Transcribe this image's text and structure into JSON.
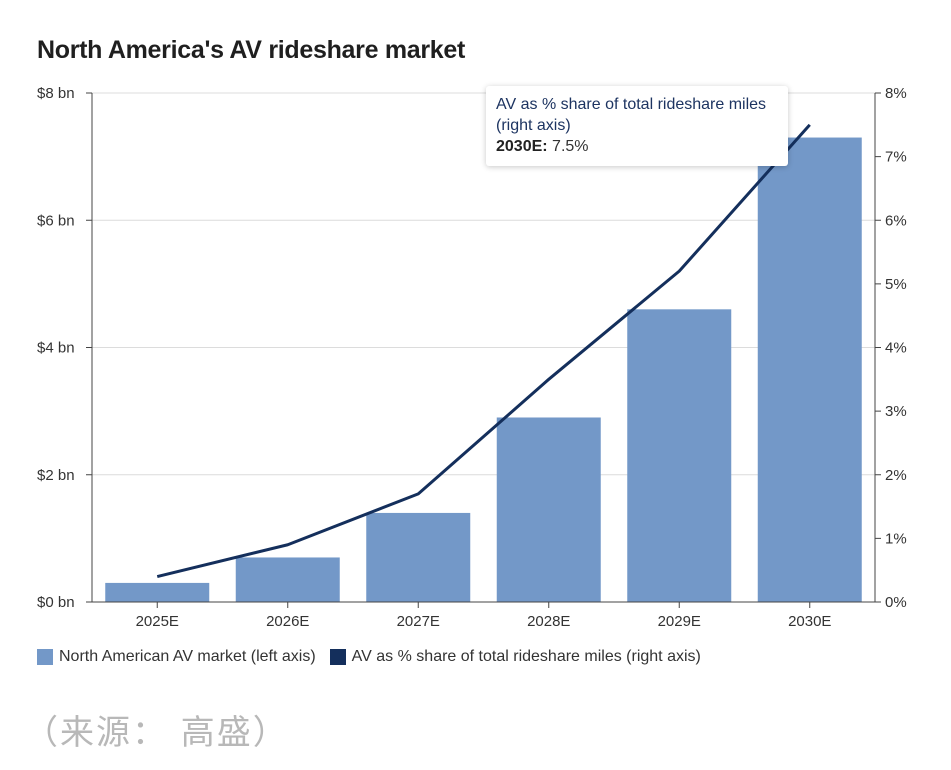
{
  "title": "North America's AV rideshare market",
  "chart_data": {
    "type": "bar",
    "categories": [
      "2025E",
      "2026E",
      "2027E",
      "2028E",
      "2029E",
      "2030E"
    ],
    "series": [
      {
        "name": "North American AV market (left axis)",
        "kind": "bar",
        "axis": "left",
        "values": [
          0.3,
          0.7,
          1.4,
          2.9,
          4.6,
          7.3
        ]
      },
      {
        "name": "AV as % share of total rideshare miles (right axis)",
        "kind": "line",
        "axis": "right",
        "values": [
          0.4,
          0.9,
          1.7,
          3.5,
          5.2,
          7.5
        ]
      }
    ],
    "left_axis": {
      "ylim": [
        0,
        8
      ],
      "ticks": [
        "$0 bn",
        "$2 bn",
        "$4 bn",
        "$6 bn",
        "$8 bn"
      ],
      "tick_values": [
        0,
        2,
        4,
        6,
        8
      ]
    },
    "right_axis": {
      "ylim": [
        0,
        8
      ],
      "ticks": [
        "0%",
        "1%",
        "2%",
        "3%",
        "4%",
        "5%",
        "6%",
        "7%",
        "8%"
      ],
      "tick_values": [
        0,
        1,
        2,
        3,
        4,
        5,
        6,
        7,
        8
      ]
    },
    "grid": true,
    "legend": "bottom-left",
    "annotation": {
      "title": "AV as % share of total rideshare miles (right axis)",
      "value_label": "2030E:",
      "value": "7.5%"
    }
  },
  "colors": {
    "bar": "#7398c8",
    "line": "#142f5c",
    "grid": "#dcdcdc",
    "axis": "#444444"
  },
  "legend": {
    "bar_label": "North American AV market (left axis)",
    "line_label": "AV as % share of total rideshare miles (right axis)"
  },
  "source_note": "（来源： 高盛）"
}
